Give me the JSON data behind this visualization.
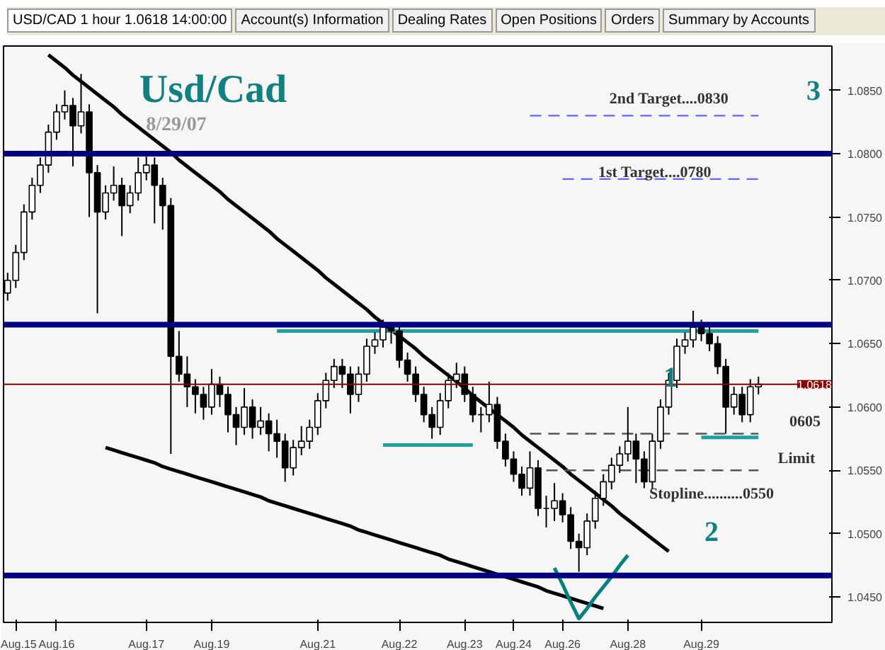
{
  "chart_data": {
    "type": "candlestick",
    "title": "Usd/Cad",
    "subtitle": "8/29/07",
    "categories": [
      null,
      "Aug.15",
      null,
      null,
      null,
      null,
      "Aug.16",
      null,
      null,
      null,
      null,
      null,
      null,
      null,
      null,
      null,
      null,
      "Aug.17",
      null,
      null,
      null,
      null,
      null,
      null,
      null,
      "Aug.19",
      null,
      null,
      null,
      null,
      null,
      null,
      null,
      null,
      null,
      null,
      null,
      null,
      "Aug.21",
      null,
      null,
      null,
      null,
      null,
      null,
      null,
      null,
      null,
      "Aug.22",
      null,
      null,
      null,
      null,
      null,
      null,
      null,
      "Aug.23",
      null,
      null,
      null,
      null,
      null,
      "Aug.24",
      null,
      null,
      null,
      null,
      null,
      "Aug.26",
      null,
      null,
      null,
      null,
      null,
      null,
      null,
      "Aug.28",
      null,
      null,
      null,
      null,
      null,
      null,
      null,
      null,
      "Aug.29",
      null,
      null,
      null,
      null,
      null,
      null,
      null
    ],
    "ohlc": [
      [
        1.069,
        1.0706,
        1.0684,
        1.07
      ],
      [
        1.07,
        1.0728,
        1.0694,
        1.0722
      ],
      [
        1.0722,
        1.076,
        1.0716,
        1.0754
      ],
      [
        1.0754,
        1.0781,
        1.0748,
        1.0775
      ],
      [
        1.0775,
        1.0797,
        1.0769,
        1.0791
      ],
      [
        1.0791,
        1.0823,
        1.0785,
        1.0817
      ],
      [
        1.0817,
        1.0839,
        1.0811,
        1.0833
      ],
      [
        1.0833,
        1.085,
        1.0827,
        1.0838
      ],
      [
        1.0838,
        1.0844,
        1.079,
        1.0822
      ],
      [
        1.0822,
        1.0863,
        1.0816,
        1.0833
      ],
      [
        1.0833,
        1.0839,
        1.075,
        1.0785
      ],
      [
        1.0785,
        1.0791,
        1.0674,
        1.0754
      ],
      [
        1.0754,
        1.0775,
        1.0748,
        1.0769
      ],
      [
        1.0769,
        1.079,
        1.0763,
        1.0775
      ],
      [
        1.0775,
        1.0781,
        1.0735,
        1.0759
      ],
      [
        1.0759,
        1.0775,
        1.0753,
        1.0769
      ],
      [
        1.0769,
        1.0797,
        1.0763,
        1.0785
      ],
      [
        1.0785,
        1.08,
        1.0779,
        1.0791
      ],
      [
        1.0791,
        1.0797,
        1.0745,
        1.0775
      ],
      [
        1.0775,
        1.0781,
        1.074,
        1.0759
      ],
      [
        1.0759,
        1.0765,
        1.0563,
        1.064
      ],
      [
        1.064,
        1.066,
        1.062,
        1.0626
      ],
      [
        1.0626,
        1.064,
        1.06,
        1.0616
      ],
      [
        1.0616,
        1.0622,
        1.0595,
        1.061
      ],
      [
        1.061,
        1.0616,
        1.059,
        1.06
      ],
      [
        1.06,
        1.063,
        1.0594,
        1.0618
      ],
      [
        1.0618,
        1.0624,
        1.06,
        1.061
      ],
      [
        1.061,
        1.0616,
        1.058,
        1.0594
      ],
      [
        1.0594,
        1.06,
        1.057,
        1.0584
      ],
      [
        1.0584,
        1.0615,
        1.0578,
        1.06
      ],
      [
        1.06,
        1.0606,
        1.0575,
        1.0584
      ],
      [
        1.0584,
        1.06,
        1.0578,
        1.0589
      ],
      [
        1.0589,
        1.0595,
        1.0565,
        1.0579
      ],
      [
        1.0579,
        1.059,
        1.056,
        1.0573
      ],
      [
        1.0573,
        1.0579,
        1.0541,
        1.0552
      ],
      [
        1.0552,
        1.0574,
        1.0546,
        1.0568
      ],
      [
        1.0568,
        1.0585,
        1.0562,
        1.0573
      ],
      [
        1.0573,
        1.059,
        1.0567,
        1.0584
      ],
      [
        1.0584,
        1.0611,
        1.0578,
        1.0605
      ],
      [
        1.0605,
        1.0627,
        1.0599,
        1.0621
      ],
      [
        1.0621,
        1.0638,
        1.0615,
        1.0632
      ],
      [
        1.0632,
        1.0638,
        1.0615,
        1.0626
      ],
      [
        1.0626,
        1.0632,
        1.0595,
        1.061
      ],
      [
        1.061,
        1.0632,
        1.0604,
        1.0626
      ],
      [
        1.0626,
        1.0654,
        1.062,
        1.0648
      ],
      [
        1.0648,
        1.0659,
        1.0642,
        1.0653
      ],
      [
        1.0653,
        1.0669,
        1.0647,
        1.0663
      ],
      [
        1.0663,
        1.0666,
        1.065,
        1.066
      ],
      [
        1.066,
        1.0666,
        1.0631,
        1.0637
      ],
      [
        1.0637,
        1.0643,
        1.062,
        1.0626
      ],
      [
        1.0626,
        1.0632,
        1.0604,
        1.061
      ],
      [
        1.061,
        1.0616,
        1.0588,
        1.0594
      ],
      [
        1.0594,
        1.06,
        1.0575,
        1.0584
      ],
      [
        1.0584,
        1.0611,
        1.0578,
        1.0605
      ],
      [
        1.0605,
        1.0627,
        1.0599,
        1.0621
      ],
      [
        1.0621,
        1.0635,
        1.0615,
        1.0626
      ],
      [
        1.0626,
        1.0632,
        1.0604,
        1.061
      ],
      [
        1.061,
        1.0616,
        1.0588,
        1.0594
      ],
      [
        1.0594,
        1.06,
        1.058,
        1.0594
      ],
      [
        1.0594,
        1.062,
        1.0588,
        1.0602
      ],
      [
        1.0602,
        1.0608,
        1.0567,
        1.0573
      ],
      [
        1.0573,
        1.0579,
        1.0553,
        1.0559
      ],
      [
        1.0559,
        1.0565,
        1.0541,
        1.0547
      ],
      [
        1.0547,
        1.0553,
        1.053,
        1.0536
      ],
      [
        1.0536,
        1.0565,
        1.053,
        1.0552
      ],
      [
        1.0552,
        1.0558,
        1.0514,
        1.052
      ],
      [
        1.052,
        1.053,
        1.0505,
        1.052
      ],
      [
        1.052,
        1.054,
        1.051,
        1.0526
      ],
      [
        1.0526,
        1.0532,
        1.0509,
        1.0515
      ],
      [
        1.0515,
        1.0521,
        1.0488,
        1.0494
      ],
      [
        1.0494,
        1.05,
        1.047,
        1.0489
      ],
      [
        1.0489,
        1.0516,
        1.0483,
        1.051
      ],
      [
        1.051,
        1.0534,
        1.0504,
        1.0528
      ],
      [
        1.0528,
        1.0547,
        1.0522,
        1.0541
      ],
      [
        1.0541,
        1.056,
        1.0535,
        1.0554
      ],
      [
        1.0554,
        1.0569,
        1.0548,
        1.0563
      ],
      [
        1.0563,
        1.06,
        1.0557,
        1.0573
      ],
      [
        1.0573,
        1.0579,
        1.054,
        1.0559
      ],
      [
        1.0559,
        1.0565,
        1.0536,
        1.0541
      ],
      [
        1.0541,
        1.0579,
        1.0535,
        1.0573
      ],
      [
        1.0573,
        1.0606,
        1.0567,
        1.06
      ],
      [
        1.06,
        1.0627,
        1.0594,
        1.0621
      ],
      [
        1.0621,
        1.0654,
        1.0615,
        1.0648
      ],
      [
        1.0648,
        1.0659,
        1.0642,
        1.0653
      ],
      [
        1.0653,
        1.0676,
        1.0647,
        1.0663
      ],
      [
        1.0663,
        1.0669,
        1.0652,
        1.0658
      ],
      [
        1.0658,
        1.0664,
        1.0644,
        1.065
      ],
      [
        1.065,
        1.0656,
        1.0626,
        1.0632
      ],
      [
        1.0632,
        1.0638,
        1.0579,
        1.06
      ],
      [
        1.06,
        1.0616,
        1.0594,
        1.061
      ],
      [
        1.061,
        1.0616,
        1.0588,
        1.0594
      ],
      [
        1.0594,
        1.0622,
        1.0588,
        1.0616
      ],
      [
        1.0616,
        1.0624,
        1.061,
        1.0618
      ]
    ],
    "ylim": [
      1.043,
      1.0885
    ],
    "yticks": [
      {
        "value": 1.045,
        "label": "1.0450"
      },
      {
        "value": 1.05,
        "label": "1.0500"
      },
      {
        "value": 1.055,
        "label": "1.0550"
      },
      {
        "value": 1.06,
        "label": "1.0600"
      },
      {
        "value": 1.065,
        "label": "1.0650"
      },
      {
        "value": 1.07,
        "label": "1.0700"
      },
      {
        "value": 1.075,
        "label": "1.0750"
      },
      {
        "value": 1.08,
        "label": "1.0800"
      },
      {
        "value": 1.085,
        "label": "1.0850"
      }
    ],
    "ref_lines": [
      {
        "axis": "y",
        "value": 1.08,
        "color": "#000080"
      },
      {
        "axis": "y",
        "value": 1.0665,
        "color": "#000080"
      },
      {
        "axis": "y",
        "value": 1.0467,
        "color": "#000080"
      },
      {
        "axis": "y",
        "value": 1.0618,
        "color": "#8b0000",
        "label": "1.0618"
      }
    ],
    "series": [
      {
        "type": "line",
        "color": "#000000",
        "values": [
          null,
          null,
          null,
          null,
          null,
          1.0878,
          1.0873,
          1.0868,
          1.0862,
          1.0857,
          1.0852,
          1.0847,
          1.0842,
          1.0837,
          1.0831,
          1.0826,
          1.0821,
          1.0816,
          1.0811,
          1.0806,
          1.0801,
          1.0795,
          1.079,
          1.0785,
          1.078,
          1.0775,
          1.077,
          1.0764,
          1.0759,
          1.0754,
          1.0749,
          1.0744,
          1.0739,
          1.0733,
          1.0728,
          1.0723,
          1.0718,
          1.0713,
          1.0708,
          1.0702,
          1.0697,
          1.0692,
          1.0687,
          1.0682,
          1.0677,
          1.0671,
          1.0666,
          1.0661,
          1.0656,
          1.0651,
          1.0646,
          1.064,
          1.0635,
          1.063,
          1.0625,
          1.062,
          1.0615,
          1.0609,
          1.0604,
          1.0599,
          1.0594,
          1.0589,
          1.0584,
          1.0578,
          1.0573,
          1.0568,
          1.0563,
          1.0558,
          1.0553,
          1.0547,
          1.0542,
          1.0537,
          1.0532,
          1.0527,
          1.0522,
          1.0516,
          1.0511,
          1.0506,
          1.0501,
          1.0496,
          1.0491,
          1.0486,
          null,
          null,
          null,
          null,
          null,
          null,
          null,
          null,
          null,
          null,
          null
        ]
      },
      {
        "type": "line",
        "color": "#000000",
        "values": [
          null,
          null,
          null,
          null,
          null,
          null,
          null,
          null,
          null,
          null,
          null,
          null,
          1.0568,
          1.0566,
          1.0564,
          1.0562,
          1.056,
          1.0558,
          1.0556,
          1.0553,
          1.0551,
          1.0549,
          1.0547,
          1.0545,
          1.0543,
          1.0541,
          1.0539,
          1.0537,
          1.0535,
          1.0533,
          1.0531,
          1.0529,
          1.0526,
          1.0524,
          1.0522,
          1.052,
          1.0518,
          1.0516,
          1.0514,
          1.0512,
          1.051,
          1.0508,
          1.0506,
          1.0503,
          1.0501,
          1.0499,
          1.0497,
          1.0495,
          1.0493,
          1.0491,
          1.0489,
          1.0487,
          1.0485,
          1.0483,
          1.048,
          1.0478,
          1.0476,
          1.0474,
          1.0472,
          1.047,
          1.0468,
          1.0466,
          1.0464,
          1.0462,
          1.046,
          1.0458,
          1.0455,
          1.0453,
          1.0451,
          1.0449,
          1.0447,
          1.0445,
          1.0443,
          1.0441,
          null,
          null,
          null,
          null,
          null,
          null,
          null,
          null,
          null,
          null,
          null,
          null,
          null,
          null,
          null,
          null,
          null,
          null,
          null
        ]
      },
      {
        "type": "line",
        "color": "#008080",
        "values": [
          null,
          null,
          null,
          null,
          null,
          null,
          null,
          null,
          null,
          null,
          null,
          null,
          null,
          null,
          null,
          null,
          null,
          null,
          null,
          null,
          null,
          null,
          null,
          null,
          null,
          null,
          null,
          null,
          null,
          null,
          null,
          null,
          null,
          null,
          null,
          null,
          null,
          null,
          null,
          null,
          null,
          null,
          null,
          null,
          null,
          null,
          null,
          null,
          null,
          null,
          null,
          null,
          null,
          null,
          null,
          null,
          null,
          null,
          null,
          null,
          null,
          null,
          null,
          null,
          null,
          null,
          null,
          1.0473,
          1.046,
          1.0446,
          1.0433,
          1.0441,
          1.045,
          1.0458,
          1.0466,
          1.0475,
          1.0483,
          null,
          null,
          null,
          null,
          null,
          null,
          null,
          null,
          null,
          null,
          null,
          null,
          null,
          null,
          null,
          null
        ]
      },
      {
        "type": "line",
        "color": "#20a0a0",
        "values": [
          null,
          null,
          null,
          null,
          null,
          null,
          null,
          null,
          null,
          null,
          null,
          null,
          null,
          null,
          null,
          null,
          null,
          null,
          null,
          null,
          null,
          null,
          null,
          null,
          null,
          null,
          null,
          null,
          null,
          null,
          null,
          null,
          null,
          1.066,
          1.066,
          1.066,
          1.066,
          1.066,
          1.066,
          1.066,
          1.066,
          1.066,
          1.066,
          1.066,
          1.066,
          1.066,
          1.066,
          1.066,
          1.066,
          1.066,
          1.066,
          1.066,
          1.066,
          1.066,
          1.066,
          1.066,
          1.066,
          1.066,
          1.066,
          1.066,
          1.066,
          1.066,
          1.066,
          1.066,
          1.066,
          1.066,
          1.066,
          1.066,
          1.066,
          1.066,
          1.066,
          1.066,
          1.066,
          1.066,
          1.066,
          1.066,
          1.066,
          1.066,
          1.066,
          1.066,
          1.066,
          1.066,
          1.066,
          1.066,
          1.066,
          1.066,
          1.066,
          1.066,
          1.066,
          1.066,
          1.066,
          1.066,
          1.066
        ]
      },
      {
        "type": "line",
        "color": "#20a0a0",
        "values": [
          null,
          null,
          null,
          null,
          null,
          null,
          null,
          null,
          null,
          null,
          null,
          null,
          null,
          null,
          null,
          null,
          null,
          null,
          null,
          null,
          null,
          null,
          null,
          null,
          null,
          null,
          null,
          null,
          null,
          null,
          null,
          null,
          null,
          null,
          null,
          null,
          null,
          null,
          null,
          null,
          null,
          null,
          null,
          null,
          null,
          null,
          1.057,
          1.057,
          1.057,
          1.057,
          1.057,
          1.057,
          1.057,
          1.057,
          1.057,
          1.057,
          1.057,
          1.057,
          null,
          null,
          null,
          null,
          null,
          null,
          null,
          null,
          null,
          null,
          null,
          null,
          null,
          null,
          null,
          null,
          null,
          null,
          null,
          null,
          null,
          null,
          null,
          null,
          null,
          null,
          null,
          null,
          null,
          null,
          null,
          null,
          null,
          null,
          null
        ]
      },
      {
        "type": "line",
        "color": "#20a0a0",
        "values": [
          null,
          null,
          null,
          null,
          null,
          null,
          null,
          null,
          null,
          null,
          null,
          null,
          null,
          null,
          null,
          null,
          null,
          null,
          null,
          null,
          null,
          null,
          null,
          null,
          null,
          null,
          null,
          null,
          null,
          null,
          null,
          null,
          null,
          null,
          null,
          null,
          null,
          null,
          null,
          null,
          null,
          null,
          null,
          null,
          null,
          null,
          null,
          null,
          null,
          null,
          null,
          null,
          null,
          null,
          null,
          null,
          null,
          null,
          null,
          null,
          null,
          null,
          null,
          null,
          null,
          null,
          null,
          null,
          null,
          null,
          null,
          null,
          null,
          null,
          null,
          null,
          null,
          null,
          null,
          null,
          null,
          null,
          null,
          null,
          null,
          1.0576,
          1.0576,
          1.0576,
          1.0576,
          1.0576,
          1.0576,
          1.0576,
          1.0576
        ]
      },
      {
        "type": "line",
        "color": "#6666ff",
        "line_style": "dashed",
        "values": [
          null,
          null,
          null,
          null,
          null,
          null,
          null,
          null,
          null,
          null,
          null,
          null,
          null,
          null,
          null,
          null,
          null,
          null,
          null,
          null,
          null,
          null,
          null,
          null,
          null,
          null,
          null,
          null,
          null,
          null,
          null,
          null,
          null,
          null,
          null,
          null,
          null,
          null,
          null,
          null,
          null,
          null,
          null,
          null,
          null,
          null,
          null,
          null,
          null,
          null,
          null,
          null,
          null,
          null,
          null,
          null,
          null,
          null,
          null,
          null,
          null,
          null,
          null,
          null,
          1.083,
          1.083,
          1.083,
          1.083,
          1.083,
          1.083,
          1.083,
          1.083,
          1.083,
          1.083,
          1.083,
          1.083,
          1.083,
          1.083,
          1.083,
          1.083,
          1.083,
          1.083,
          1.083,
          1.083,
          1.083,
          1.083,
          1.083,
          1.083,
          1.083,
          1.083,
          1.083,
          1.083,
          1.083
        ]
      },
      {
        "type": "line",
        "color": "#6666ff",
        "line_style": "dashed",
        "values": [
          null,
          null,
          null,
          null,
          null,
          null,
          null,
          null,
          null,
          null,
          null,
          null,
          null,
          null,
          null,
          null,
          null,
          null,
          null,
          null,
          null,
          null,
          null,
          null,
          null,
          null,
          null,
          null,
          null,
          null,
          null,
          null,
          null,
          null,
          null,
          null,
          null,
          null,
          null,
          null,
          null,
          null,
          null,
          null,
          null,
          null,
          null,
          null,
          null,
          null,
          null,
          null,
          null,
          null,
          null,
          null,
          null,
          null,
          null,
          null,
          null,
          null,
          null,
          null,
          null,
          null,
          null,
          null,
          1.078,
          1.078,
          1.078,
          1.078,
          1.078,
          1.078,
          1.078,
          1.078,
          1.078,
          1.078,
          1.078,
          1.078,
          1.078,
          1.078,
          1.078,
          1.078,
          1.078,
          1.078,
          1.078,
          1.078,
          1.078,
          1.078,
          1.078,
          1.078,
          1.078
        ]
      },
      {
        "type": "line",
        "color": "#555555",
        "line_style": "dashed",
        "values": [
          null,
          null,
          null,
          null,
          null,
          null,
          null,
          null,
          null,
          null,
          null,
          null,
          null,
          null,
          null,
          null,
          null,
          null,
          null,
          null,
          null,
          null,
          null,
          null,
          null,
          null,
          null,
          null,
          null,
          null,
          null,
          null,
          null,
          null,
          null,
          null,
          null,
          null,
          null,
          null,
          null,
          null,
          null,
          null,
          null,
          null,
          null,
          null,
          null,
          null,
          null,
          null,
          null,
          null,
          null,
          null,
          null,
          null,
          null,
          null,
          null,
          null,
          null,
          null,
          1.0579,
          1.0579,
          1.0579,
          1.0579,
          1.0579,
          1.0579,
          1.0579,
          1.0579,
          1.0579,
          1.0579,
          1.0579,
          1.0579,
          1.0579,
          1.0579,
          1.0579,
          1.0579,
          1.0579,
          1.0579,
          1.0579,
          1.0579,
          1.0579,
          1.0579,
          1.0579,
          1.0579,
          1.0579,
          1.0579,
          1.0579,
          1.0579,
          1.0579
        ]
      },
      {
        "type": "line",
        "color": "#555555",
        "line_style": "dashed",
        "values": [
          null,
          null,
          null,
          null,
          null,
          null,
          null,
          null,
          null,
          null,
          null,
          null,
          null,
          null,
          null,
          null,
          null,
          null,
          null,
          null,
          null,
          null,
          null,
          null,
          null,
          null,
          null,
          null,
          null,
          null,
          null,
          null,
          null,
          null,
          null,
          null,
          null,
          null,
          null,
          null,
          null,
          null,
          null,
          null,
          null,
          null,
          null,
          null,
          null,
          null,
          null,
          null,
          null,
          null,
          null,
          null,
          null,
          null,
          null,
          null,
          null,
          null,
          null,
          null,
          null,
          null,
          1.055,
          1.055,
          1.055,
          1.055,
          1.055,
          1.055,
          1.055,
          1.055,
          1.055,
          1.055,
          1.055,
          1.055,
          1.055,
          1.055,
          1.055,
          1.055,
          1.055,
          1.055,
          1.055,
          1.055,
          1.055,
          1.055,
          1.055,
          1.055,
          1.055,
          1.055,
          1.055
        ]
      }
    ],
    "annotations": [
      "USD/CAD 1 hour 1.0618 14:00:00",
      "Account(s) Information",
      "Dealing Rates",
      "Open Positions",
      "Orders",
      "Summary by Accounts",
      "2nd Target....0830",
      "1st Target....0780",
      "3",
      "1",
      "0605",
      "Limit",
      "Stopline..........0550",
      "2"
    ]
  }
}
